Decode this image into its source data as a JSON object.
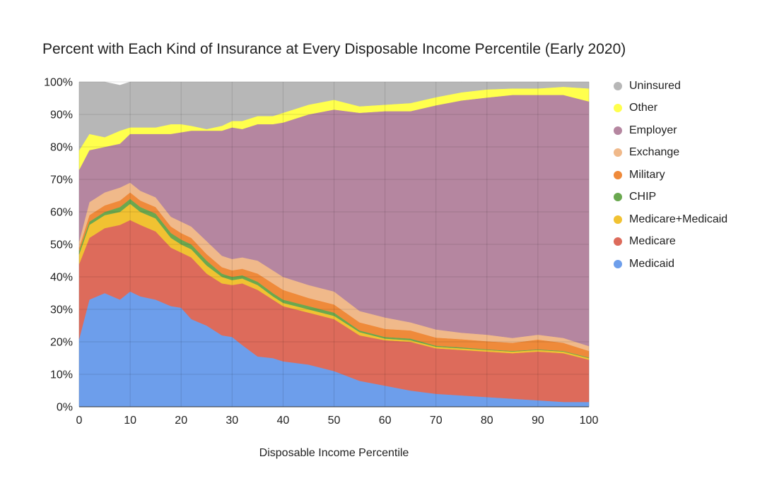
{
  "chart_data": {
    "type": "area",
    "stacked": true,
    "title": "Percent with Each Kind of Insurance at Every Disposable Income Percentile (Early 2020)",
    "xlabel": "Disposable Income Percentile",
    "ylabel": "",
    "xlim": [
      0,
      100
    ],
    "ylim": [
      0,
      100
    ],
    "x_ticks": [
      "0",
      "10",
      "20",
      "30",
      "40",
      "50",
      "60",
      "70",
      "80",
      "90",
      "100"
    ],
    "y_ticks": [
      "0%",
      "10%",
      "20%",
      "30%",
      "40%",
      "50%",
      "60%",
      "70%",
      "80%",
      "90%",
      "100%"
    ],
    "grid": true,
    "legend_position": "right",
    "x": [
      0,
      2,
      5,
      8,
      10,
      12,
      15,
      18,
      20,
      22,
      25,
      28,
      30,
      32,
      35,
      38,
      40,
      45,
      50,
      55,
      60,
      65,
      70,
      75,
      80,
      85,
      90,
      95,
      100
    ],
    "series": [
      {
        "name": "Medicaid",
        "color": "#6d9eeb",
        "values": [
          21,
          33,
          35,
          33,
          35.5,
          34,
          33,
          31,
          30.5,
          27,
          25,
          22,
          21.5,
          19,
          15.5,
          15,
          14,
          13,
          11,
          8,
          6.5,
          5,
          4,
          3.5,
          3,
          2.5,
          2,
          1.5,
          1.5
        ]
      },
      {
        "name": "Medicare",
        "color": "#dd6b5b",
        "values": [
          23,
          19,
          20,
          23,
          22,
          22,
          21,
          18,
          17,
          19,
          16,
          16,
          16,
          19,
          20.5,
          18,
          17,
          16,
          16,
          14,
          14,
          15,
          14,
          14,
          14,
          14,
          15,
          15,
          13
        ]
      },
      {
        "name": "Medicare+Medicaid",
        "color": "#f1c232",
        "values": [
          3,
          4,
          4,
          4,
          5,
          4,
          4,
          3,
          2.5,
          2.5,
          2.5,
          2,
          1.5,
          1.5,
          1.5,
          1,
          1,
          1,
          1,
          1,
          0.5,
          0.5,
          0.5,
          0.5,
          0.5,
          0.5,
          0.5,
          0.5,
          0.5
        ]
      },
      {
        "name": "CHIP",
        "color": "#6aa84f",
        "values": [
          1,
          1,
          1,
          1.5,
          1.5,
          1.5,
          1.5,
          1.5,
          1.5,
          1.5,
          1.5,
          1,
          1,
          1,
          1,
          1,
          1,
          1,
          1,
          0.5,
          0.5,
          0.5,
          0.3,
          0.3,
          0.2,
          0.2,
          0.2,
          0.2,
          0.2
        ]
      },
      {
        "name": "Military",
        "color": "#ef8a3a",
        "values": [
          1,
          2,
          2,
          2,
          2,
          2,
          2,
          2,
          2,
          2,
          2,
          2,
          2,
          2,
          2.5,
          3,
          3,
          2.5,
          2.5,
          2.5,
          2.5,
          2.5,
          2.5,
          2.5,
          2.5,
          2.5,
          3,
          2.5,
          2
        ]
      },
      {
        "name": "Exchange",
        "color": "#f0b98a",
        "values": [
          2,
          4,
          4,
          4,
          3,
          3,
          3,
          3,
          3.5,
          3.5,
          4,
          3.5,
          3.5,
          3.5,
          4,
          4,
          4,
          4,
          4,
          3.5,
          3.5,
          2.5,
          2.5,
          2,
          2,
          1.5,
          1.5,
          1.5,
          1.5
        ]
      },
      {
        "name": "Employer",
        "color": "#b586a0",
        "values": [
          22,
          16,
          14,
          13.5,
          15,
          17.5,
          19.5,
          25.5,
          27.5,
          29.5,
          34,
          38.5,
          40.5,
          39.5,
          42,
          45,
          47.5,
          52.5,
          56,
          61,
          63.5,
          65,
          69,
          71.5,
          73,
          74.8,
          73.8,
          74.8,
          75.3
        ]
      },
      {
        "name": "Other",
        "color": "#ffff4d",
        "values": [
          6,
          5,
          3,
          4,
          2,
          2,
          2,
          3,
          2.5,
          1.5,
          0.5,
          1.5,
          2,
          2.5,
          2.5,
          2.5,
          3,
          3,
          3,
          2,
          2,
          2.5,
          2.5,
          2.5,
          2.5,
          2,
          2,
          2.5,
          4
        ]
      },
      {
        "name": "Uninsured",
        "color": "#b7b7b7",
        "values": [
          21,
          16,
          17,
          14,
          14,
          14,
          14,
          13,
          13.5,
          13.5,
          15,
          14,
          12,
          12,
          11,
          11.5,
          10,
          7.5,
          6.5,
          7.5,
          7,
          6.5,
          4.7,
          3.2,
          2.3,
          2,
          2,
          1.5,
          2
        ]
      }
    ]
  }
}
